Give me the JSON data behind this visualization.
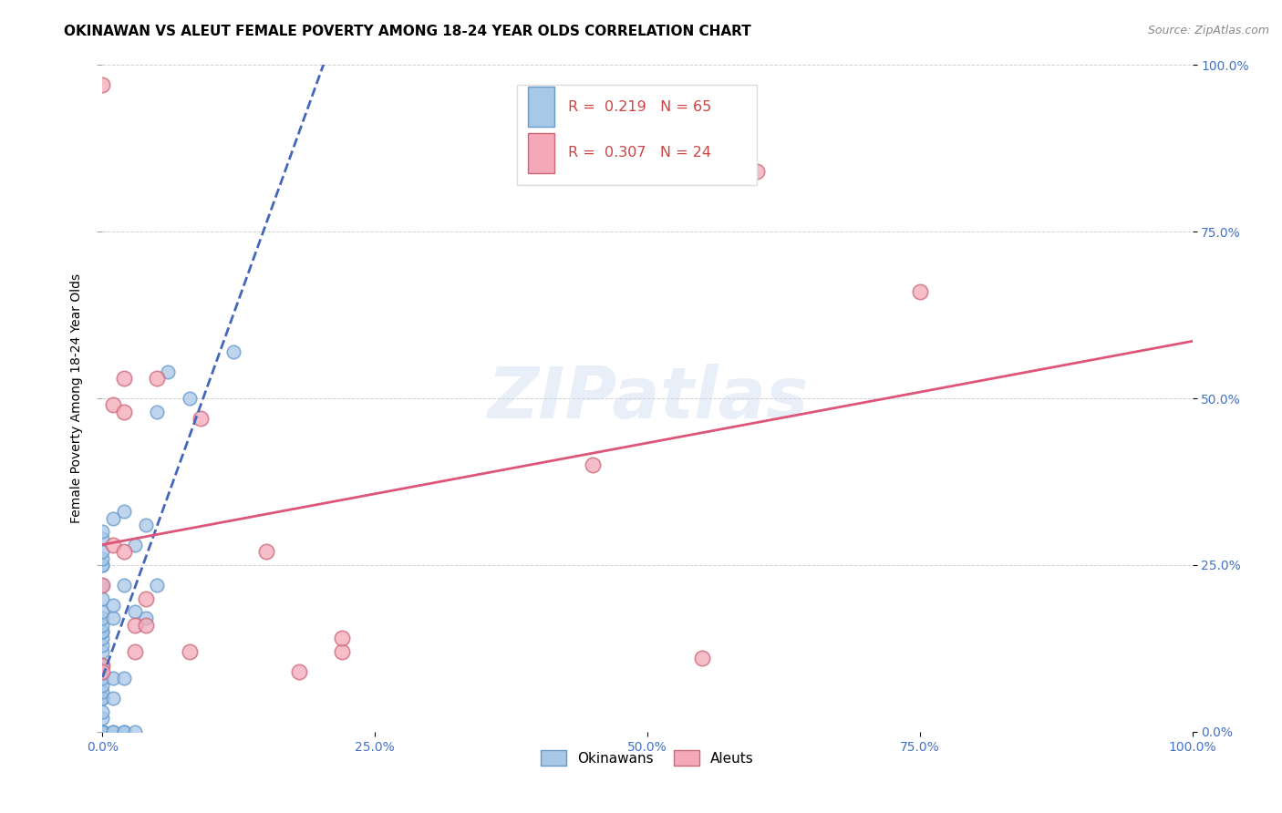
{
  "title": "OKINAWAN VS ALEUT FEMALE POVERTY AMONG 18-24 YEAR OLDS CORRELATION CHART",
  "source": "Source: ZipAtlas.com",
  "ylabel": "Female Poverty Among 18-24 Year Olds",
  "xlim": [
    0,
    1.0
  ],
  "ylim": [
    0,
    1.0
  ],
  "xticks": [
    0,
    0.25,
    0.5,
    0.75,
    1.0
  ],
  "yticks": [
    0,
    0.25,
    0.5,
    0.75,
    1.0
  ],
  "background_color": "#ffffff",
  "okinawan_color": "#a8c8e8",
  "okinawan_edge": "#6699cc",
  "aleut_color": "#f4a8b8",
  "aleut_edge": "#cc6677",
  "okinawan_R": 0.219,
  "okinawan_N": 65,
  "aleut_R": 0.307,
  "aleut_N": 24,
  "okinawan_x": [
    0.0,
    0.0,
    0.0,
    0.0,
    0.0,
    0.0,
    0.0,
    0.0,
    0.0,
    0.0,
    0.0,
    0.0,
    0.0,
    0.0,
    0.0,
    0.0,
    0.0,
    0.0,
    0.0,
    0.0,
    0.0,
    0.0,
    0.0,
    0.0,
    0.0,
    0.0,
    0.0,
    0.0,
    0.0,
    0.0,
    0.0,
    0.0,
    0.0,
    0.0,
    0.0,
    0.0,
    0.0,
    0.0,
    0.0,
    0.0,
    0.0,
    0.0,
    0.0,
    0.01,
    0.01,
    0.01,
    0.01,
    0.01,
    0.01,
    0.01,
    0.02,
    0.02,
    0.02,
    0.02,
    0.02,
    0.03,
    0.03,
    0.03,
    0.04,
    0.04,
    0.05,
    0.05,
    0.06,
    0.08,
    0.12
  ],
  "okinawan_y": [
    0.0,
    0.0,
    0.0,
    0.0,
    0.0,
    0.0,
    0.0,
    0.0,
    0.0,
    0.0,
    0.0,
    0.0,
    0.0,
    0.0,
    0.0,
    0.0,
    0.0,
    0.0,
    0.02,
    0.03,
    0.05,
    0.05,
    0.06,
    0.07,
    0.08,
    0.1,
    0.1,
    0.12,
    0.13,
    0.14,
    0.15,
    0.15,
    0.16,
    0.17,
    0.18,
    0.2,
    0.22,
    0.25,
    0.25,
    0.26,
    0.27,
    0.29,
    0.3,
    0.0,
    0.0,
    0.05,
    0.08,
    0.17,
    0.19,
    0.32,
    0.0,
    0.0,
    0.08,
    0.22,
    0.33,
    0.0,
    0.18,
    0.28,
    0.17,
    0.31,
    0.22,
    0.48,
    0.54,
    0.5,
    0.57
  ],
  "aleut_x": [
    0.0,
    0.0,
    0.0,
    0.0,
    0.01,
    0.01,
    0.02,
    0.02,
    0.02,
    0.03,
    0.03,
    0.04,
    0.04,
    0.05,
    0.08,
    0.09,
    0.15,
    0.18,
    0.22,
    0.22,
    0.45,
    0.55,
    0.6,
    0.75
  ],
  "aleut_y": [
    0.97,
    0.1,
    0.09,
    0.22,
    0.28,
    0.49,
    0.48,
    0.53,
    0.27,
    0.12,
    0.16,
    0.2,
    0.16,
    0.53,
    0.12,
    0.47,
    0.27,
    0.09,
    0.12,
    0.14,
    0.4,
    0.11,
    0.84,
    0.66
  ],
  "watermark": "ZIPatlas",
  "title_fontsize": 11,
  "label_fontsize": 10,
  "tick_fontsize": 10
}
